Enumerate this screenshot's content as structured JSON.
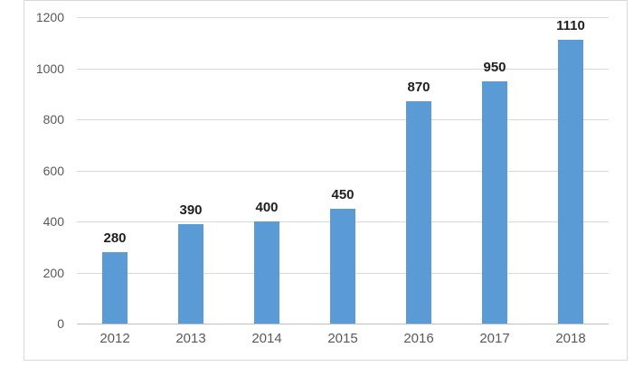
{
  "chart_data": {
    "type": "bar",
    "title": "",
    "xlabel": "",
    "ylabel": "",
    "categories": [
      "2012",
      "2013",
      "2014",
      "2015",
      "2016",
      "2017",
      "2018"
    ],
    "values": [
      280,
      390,
      400,
      450,
      870,
      950,
      1110
    ],
    "data_labels": [
      "280",
      "390",
      "400",
      "450",
      "870",
      "950",
      "1110"
    ],
    "ylim": [
      0,
      1200
    ],
    "yticks": [
      0,
      200,
      400,
      600,
      800,
      1000,
      1200
    ],
    "grid": true,
    "legend_position": "none",
    "colors": {
      "bar": "#5b9bd5",
      "gridline": "#d9d9d9",
      "axis_line": "#bfbfbf",
      "frame_border": "#d9d9d9",
      "tick_label": "#595959",
      "data_label": "#1f1f1f",
      "background": "#ffffff"
    }
  }
}
